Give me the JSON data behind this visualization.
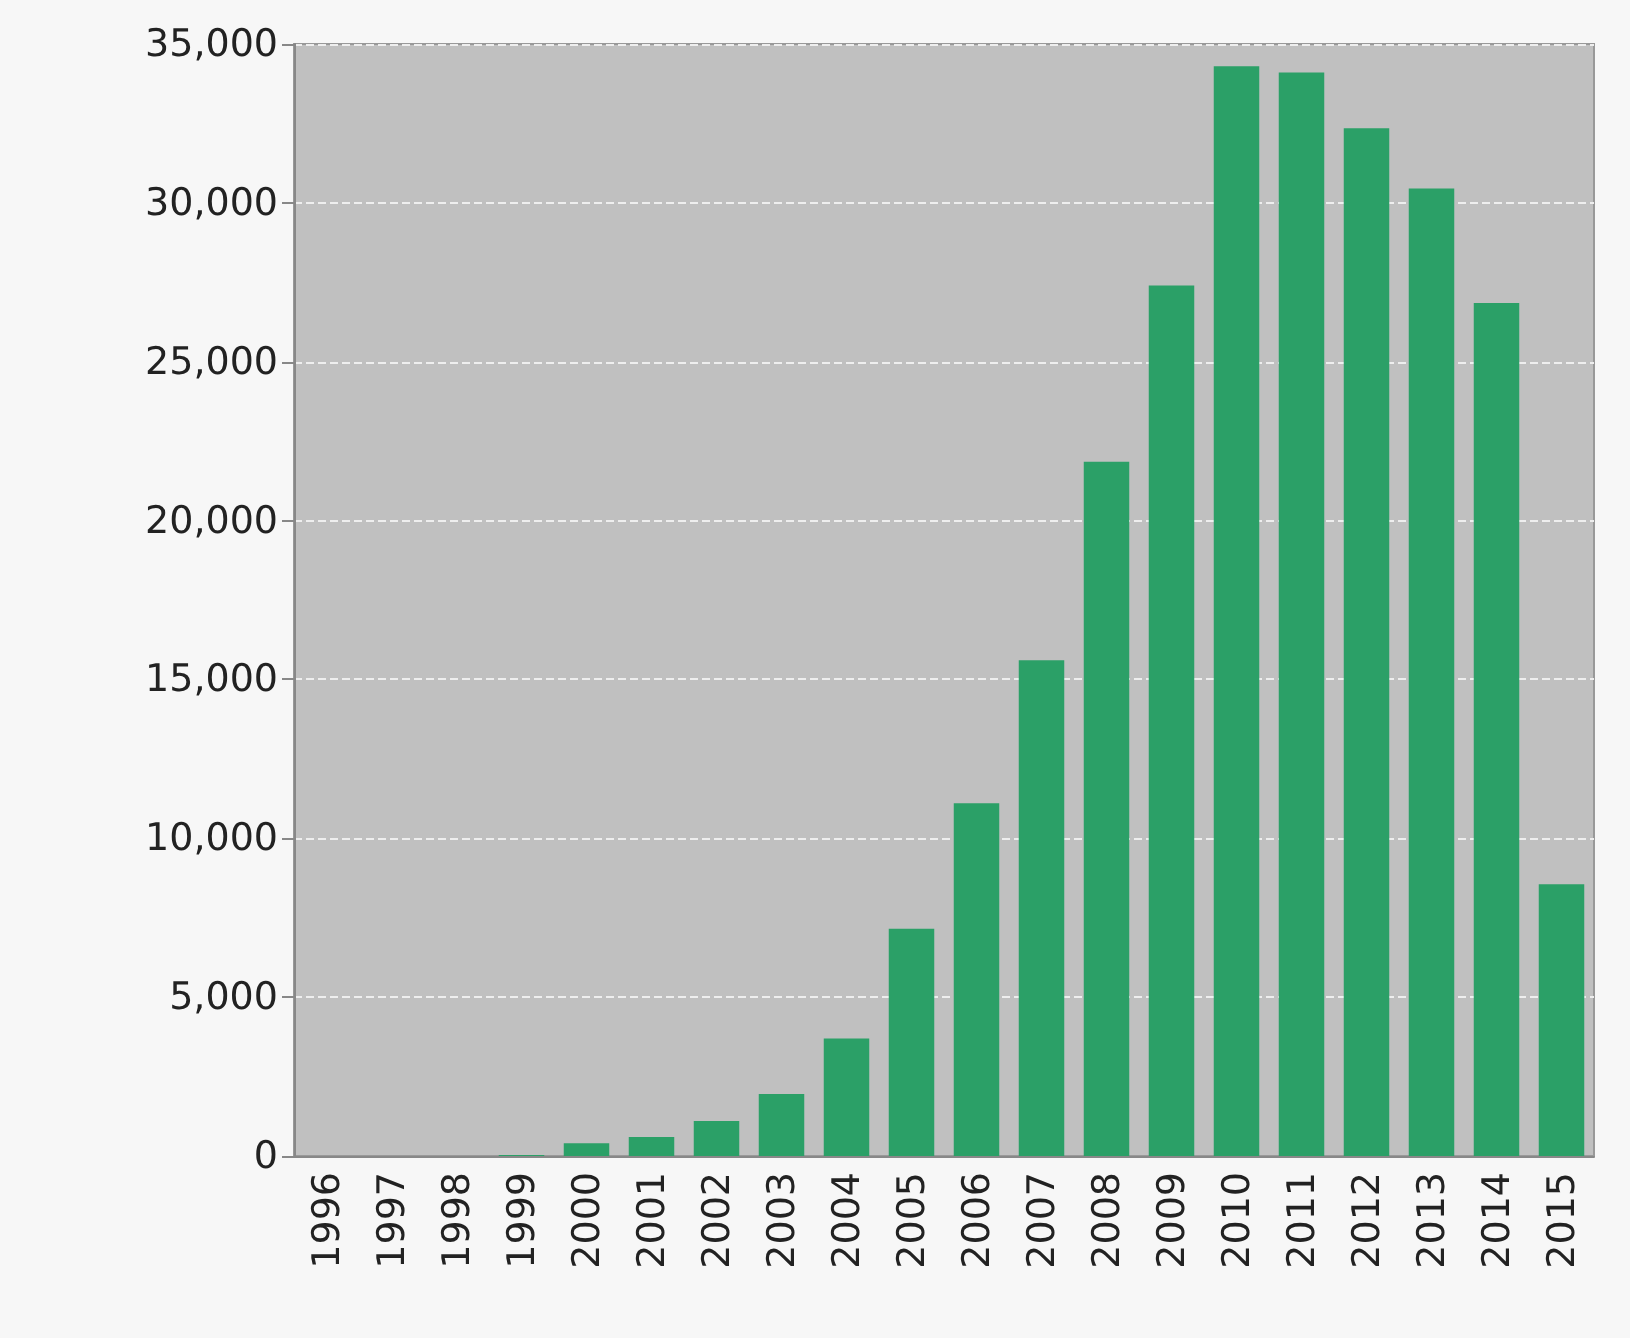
{
  "chart_data": {
    "type": "bar",
    "categories": [
      "1996",
      "1997",
      "1998",
      "1999",
      "2000",
      "2001",
      "2002",
      "2003",
      "2004",
      "2005",
      "2006",
      "2007",
      "2008",
      "2009",
      "2010",
      "2011",
      "2012",
      "2013",
      "2014",
      "2015"
    ],
    "values": [
      0,
      0,
      0,
      30,
      400,
      600,
      1100,
      1950,
      3700,
      7150,
      11100,
      15600,
      21850,
      27400,
      34300,
      34100,
      32350,
      30450,
      26850,
      8550
    ],
    "color": "#2ba067",
    "ylim": [
      0,
      35000
    ],
    "yticks": [
      {
        "value": 0,
        "label": "0"
      },
      {
        "value": 5000,
        "label": "5,000"
      },
      {
        "value": 10000,
        "label": "10,000"
      },
      {
        "value": 15000,
        "label": "15,000"
      },
      {
        "value": 20000,
        "label": "20,000"
      },
      {
        "value": 25000,
        "label": "25,000"
      },
      {
        "value": 30000,
        "label": "30,000"
      },
      {
        "value": 35000,
        "label": "35,000"
      }
    ],
    "grid": "y"
  }
}
